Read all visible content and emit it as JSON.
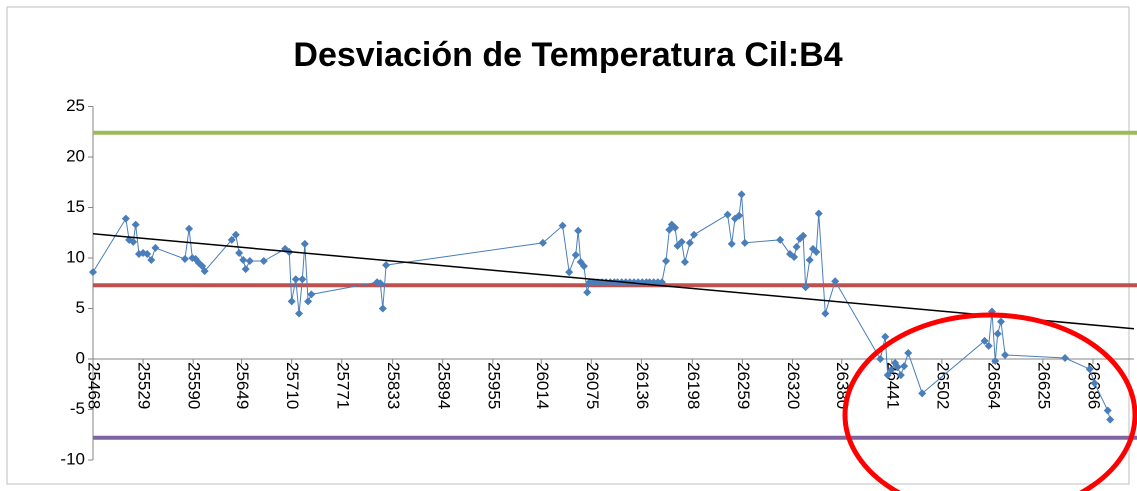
{
  "chart_data": {
    "type": "line",
    "title": "Desviación de Temperatura Cil:B4",
    "x": [
      25468,
      25508,
      25512,
      25517,
      25520,
      25524,
      25529,
      25534,
      25539,
      25544,
      25580,
      25585,
      25589,
      25593,
      25597,
      25601,
      25604,
      25637,
      25642,
      25646,
      25651,
      25654,
      25659,
      25676,
      25702,
      25707,
      25710,
      25715,
      25719,
      25723,
      25726,
      25730,
      25734,
      25814,
      25818,
      25821,
      25825,
      26016,
      26040,
      26048,
      26056,
      26059,
      26062,
      26066,
      26070,
      26073,
      26078,
      26083,
      26088,
      26093,
      26098,
      26103,
      26107,
      26112,
      26117,
      26122,
      26127,
      26132,
      26137,
      26142,
      26146,
      26151,
      26156,
      26161,
      26166,
      26170,
      26173,
      26177,
      26180,
      26185,
      26189,
      26195,
      26200,
      26241,
      26246,
      26250,
      26255,
      26258,
      26262,
      26305,
      26317,
      26322,
      26325,
      26329,
      26333,
      26336,
      26341,
      26345,
      26349,
      26352,
      26360,
      26372,
      26427,
      26433,
      26436,
      26440,
      26445,
      26448,
      26452,
      26456,
      26461,
      26478,
      26554,
      26559,
      26563,
      26567,
      26570,
      26574,
      26579,
      26652,
      26682,
      26688,
      26704,
      26707
    ],
    "series": [
      {
        "color": "#4a7ebb",
        "values": [
          8.6,
          13.9,
          11.8,
          11.6,
          13.3,
          10.4,
          10.5,
          10.4,
          9.8,
          11.0,
          9.9,
          12.9,
          10.0,
          9.9,
          9.5,
          9.2,
          8.7,
          11.8,
          12.3,
          10.5,
          9.8,
          8.9,
          9.7,
          9.7,
          10.9,
          10.6,
          5.7,
          7.9,
          4.5,
          7.9,
          11.4,
          5.7,
          6.4,
          7.6,
          7.5,
          5.0,
          9.3,
          11.5,
          13.2,
          8.6,
          10.3,
          12.7,
          9.6,
          9.2,
          6.6,
          7.6,
          7.6,
          7.6,
          7.6,
          7.6,
          7.6,
          7.6,
          7.6,
          7.6,
          7.6,
          7.6,
          7.6,
          7.6,
          7.6,
          7.6,
          7.6,
          7.6,
          7.6,
          7.6,
          9.7,
          12.8,
          13.3,
          13.0,
          11.2,
          11.6,
          9.6,
          11.5,
          12.3,
          14.3,
          11.4,
          13.9,
          14.2,
          16.3,
          11.5,
          11.8,
          10.4,
          10.1,
          11.1,
          11.9,
          12.2,
          7.1,
          9.8,
          10.9,
          10.6,
          14.4,
          4.5,
          7.7,
          0.0,
          2.2,
          -1.6,
          -1.1,
          -0.4,
          -0.8,
          -1.6,
          -0.7,
          0.6,
          -3.4,
          1.8,
          1.3,
          4.7,
          -0.2,
          2.5,
          3.7,
          0.4,
          0.1,
          -1.0,
          -2.4,
          -5.1,
          -6.0
        ]
      }
    ],
    "reference_lines": [
      {
        "value": 22.4,
        "color": "#9bbb59"
      },
      {
        "value": 7.3,
        "color": "#c0504d"
      },
      {
        "value": -7.8,
        "color": "#8064a2"
      }
    ],
    "trendline": {
      "color": "#000000",
      "values": [
        12.4,
        3.0
      ]
    },
    "xlim": [
      25468,
      26736
    ],
    "xticks": [
      25468,
      25529,
      25590,
      25649,
      25710,
      25771,
      25833,
      25894,
      25955,
      26014,
      26075,
      26136,
      26198,
      26259,
      26320,
      26380,
      26441,
      26502,
      26564,
      26625,
      26686
    ],
    "ylim": [
      -10,
      25
    ],
    "yticks": [
      -10,
      -5,
      0,
      5,
      10,
      15,
      20,
      25
    ]
  }
}
